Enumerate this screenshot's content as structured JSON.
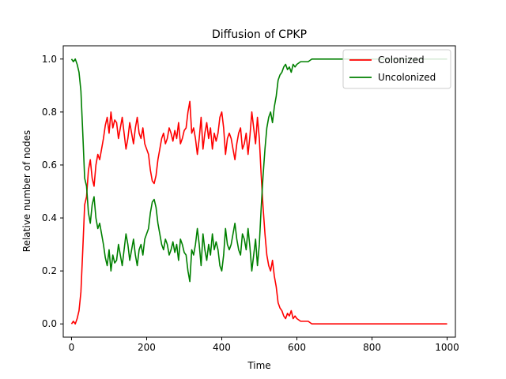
{
  "chart_data": {
    "type": "line",
    "title": "Diffusion of CPKP",
    "xlabel": "Time",
    "ylabel": "Relative number of nodes",
    "xlim": [
      -22,
      1022
    ],
    "ylim": [
      -0.05,
      1.05
    ],
    "xticks": [
      0,
      200,
      400,
      600,
      800,
      1000
    ],
    "yticks": [
      0.0,
      0.2,
      0.4,
      0.6,
      0.8,
      1.0
    ],
    "ytick_labels": [
      "0.0",
      "0.2",
      "0.4",
      "0.6",
      "0.8",
      "1.0"
    ],
    "legend_position": "top-right",
    "grid": false,
    "series": [
      {
        "name": "Colonized",
        "color": "#ff0000",
        "points": [
          [
            0,
            0.0
          ],
          [
            5,
            0.01
          ],
          [
            10,
            0.0
          ],
          [
            15,
            0.02
          ],
          [
            20,
            0.05
          ],
          [
            25,
            0.12
          ],
          [
            30,
            0.28
          ],
          [
            35,
            0.45
          ],
          [
            40,
            0.48
          ],
          [
            45,
            0.58
          ],
          [
            50,
            0.62
          ],
          [
            55,
            0.55
          ],
          [
            60,
            0.52
          ],
          [
            65,
            0.6
          ],
          [
            70,
            0.64
          ],
          [
            75,
            0.62
          ],
          [
            80,
            0.66
          ],
          [
            85,
            0.7
          ],
          [
            90,
            0.75
          ],
          [
            95,
            0.78
          ],
          [
            100,
            0.72
          ],
          [
            105,
            0.8
          ],
          [
            110,
            0.74
          ],
          [
            115,
            0.77
          ],
          [
            120,
            0.76
          ],
          [
            125,
            0.7
          ],
          [
            130,
            0.74
          ],
          [
            135,
            0.78
          ],
          [
            140,
            0.72
          ],
          [
            145,
            0.66
          ],
          [
            150,
            0.7
          ],
          [
            155,
            0.76
          ],
          [
            160,
            0.72
          ],
          [
            165,
            0.68
          ],
          [
            170,
            0.74
          ],
          [
            175,
            0.78
          ],
          [
            180,
            0.72
          ],
          [
            185,
            0.7
          ],
          [
            190,
            0.74
          ],
          [
            195,
            0.68
          ],
          [
            200,
            0.66
          ],
          [
            205,
            0.64
          ],
          [
            210,
            0.58
          ],
          [
            215,
            0.54
          ],
          [
            220,
            0.53
          ],
          [
            225,
            0.56
          ],
          [
            230,
            0.62
          ],
          [
            235,
            0.66
          ],
          [
            240,
            0.7
          ],
          [
            245,
            0.72
          ],
          [
            250,
            0.68
          ],
          [
            255,
            0.7
          ],
          [
            260,
            0.74
          ],
          [
            265,
            0.72
          ],
          [
            270,
            0.69
          ],
          [
            275,
            0.73
          ],
          [
            280,
            0.7
          ],
          [
            285,
            0.76
          ],
          [
            290,
            0.68
          ],
          [
            295,
            0.7
          ],
          [
            300,
            0.73
          ],
          [
            305,
            0.74
          ],
          [
            310,
            0.8
          ],
          [
            315,
            0.84
          ],
          [
            320,
            0.72
          ],
          [
            325,
            0.74
          ],
          [
            330,
            0.7
          ],
          [
            335,
            0.64
          ],
          [
            340,
            0.7
          ],
          [
            345,
            0.78
          ],
          [
            350,
            0.66
          ],
          [
            355,
            0.72
          ],
          [
            360,
            0.76
          ],
          [
            365,
            0.7
          ],
          [
            370,
            0.74
          ],
          [
            375,
            0.66
          ],
          [
            380,
            0.72
          ],
          [
            385,
            0.69
          ],
          [
            390,
            0.72
          ],
          [
            395,
            0.78
          ],
          [
            400,
            0.8
          ],
          [
            405,
            0.74
          ],
          [
            410,
            0.64
          ],
          [
            415,
            0.7
          ],
          [
            420,
            0.72
          ],
          [
            425,
            0.7
          ],
          [
            430,
            0.66
          ],
          [
            435,
            0.62
          ],
          [
            440,
            0.68
          ],
          [
            445,
            0.72
          ],
          [
            450,
            0.74
          ],
          [
            455,
            0.66
          ],
          [
            460,
            0.68
          ],
          [
            465,
            0.72
          ],
          [
            470,
            0.64
          ],
          [
            475,
            0.71
          ],
          [
            480,
            0.8
          ],
          [
            485,
            0.74
          ],
          [
            490,
            0.68
          ],
          [
            495,
            0.78
          ],
          [
            500,
            0.7
          ],
          [
            505,
            0.56
          ],
          [
            510,
            0.44
          ],
          [
            515,
            0.34
          ],
          [
            520,
            0.26
          ],
          [
            525,
            0.22
          ],
          [
            530,
            0.2
          ],
          [
            535,
            0.24
          ],
          [
            540,
            0.18
          ],
          [
            545,
            0.14
          ],
          [
            550,
            0.08
          ],
          [
            555,
            0.06
          ],
          [
            560,
            0.05
          ],
          [
            565,
            0.03
          ],
          [
            570,
            0.02
          ],
          [
            575,
            0.04
          ],
          [
            580,
            0.03
          ],
          [
            585,
            0.05
          ],
          [
            590,
            0.02
          ],
          [
            595,
            0.03
          ],
          [
            600,
            0.02
          ],
          [
            610,
            0.01
          ],
          [
            620,
            0.01
          ],
          [
            630,
            0.01
          ],
          [
            640,
            0.0
          ],
          [
            660,
            0.0
          ],
          [
            700,
            0.0
          ],
          [
            800,
            0.0
          ],
          [
            900,
            0.0
          ],
          [
            1000,
            0.0
          ]
        ]
      },
      {
        "name": "Uncolonized",
        "color": "#008000",
        "points": [
          [
            0,
            1.0
          ],
          [
            5,
            0.99
          ],
          [
            10,
            1.0
          ],
          [
            15,
            0.98
          ],
          [
            20,
            0.95
          ],
          [
            25,
            0.88
          ],
          [
            30,
            0.72
          ],
          [
            35,
            0.55
          ],
          [
            40,
            0.52
          ],
          [
            45,
            0.42
          ],
          [
            50,
            0.38
          ],
          [
            55,
            0.45
          ],
          [
            60,
            0.48
          ],
          [
            65,
            0.4
          ],
          [
            70,
            0.36
          ],
          [
            75,
            0.38
          ],
          [
            80,
            0.34
          ],
          [
            85,
            0.3
          ],
          [
            90,
            0.25
          ],
          [
            95,
            0.22
          ],
          [
            100,
            0.28
          ],
          [
            105,
            0.2
          ],
          [
            110,
            0.26
          ],
          [
            115,
            0.23
          ],
          [
            120,
            0.24
          ],
          [
            125,
            0.3
          ],
          [
            130,
            0.26
          ],
          [
            135,
            0.22
          ],
          [
            140,
            0.28
          ],
          [
            145,
            0.34
          ],
          [
            150,
            0.3
          ],
          [
            155,
            0.24
          ],
          [
            160,
            0.28
          ],
          [
            165,
            0.32
          ],
          [
            170,
            0.26
          ],
          [
            175,
            0.22
          ],
          [
            180,
            0.28
          ],
          [
            185,
            0.3
          ],
          [
            190,
            0.26
          ],
          [
            195,
            0.32
          ],
          [
            200,
            0.34
          ],
          [
            205,
            0.36
          ],
          [
            210,
            0.42
          ],
          [
            215,
            0.46
          ],
          [
            220,
            0.47
          ],
          [
            225,
            0.44
          ],
          [
            230,
            0.38
          ],
          [
            235,
            0.34
          ],
          [
            240,
            0.3
          ],
          [
            245,
            0.28
          ],
          [
            250,
            0.32
          ],
          [
            255,
            0.3
          ],
          [
            260,
            0.26
          ],
          [
            265,
            0.28
          ],
          [
            270,
            0.31
          ],
          [
            275,
            0.27
          ],
          [
            280,
            0.3
          ],
          [
            285,
            0.24
          ],
          [
            290,
            0.32
          ],
          [
            295,
            0.3
          ],
          [
            300,
            0.27
          ],
          [
            305,
            0.26
          ],
          [
            310,
            0.2
          ],
          [
            315,
            0.16
          ],
          [
            320,
            0.28
          ],
          [
            325,
            0.26
          ],
          [
            330,
            0.3
          ],
          [
            335,
            0.36
          ],
          [
            340,
            0.3
          ],
          [
            345,
            0.22
          ],
          [
            350,
            0.34
          ],
          [
            355,
            0.28
          ],
          [
            360,
            0.24
          ],
          [
            365,
            0.3
          ],
          [
            370,
            0.26
          ],
          [
            375,
            0.34
          ],
          [
            380,
            0.28
          ],
          [
            385,
            0.31
          ],
          [
            390,
            0.28
          ],
          [
            395,
            0.22
          ],
          [
            400,
            0.2
          ],
          [
            405,
            0.26
          ],
          [
            410,
            0.36
          ],
          [
            415,
            0.3
          ],
          [
            420,
            0.28
          ],
          [
            425,
            0.3
          ],
          [
            430,
            0.34
          ],
          [
            435,
            0.38
          ],
          [
            440,
            0.32
          ],
          [
            445,
            0.28
          ],
          [
            450,
            0.26
          ],
          [
            455,
            0.34
          ],
          [
            460,
            0.32
          ],
          [
            465,
            0.28
          ],
          [
            470,
            0.36
          ],
          [
            475,
            0.29
          ],
          [
            480,
            0.2
          ],
          [
            485,
            0.26
          ],
          [
            490,
            0.32
          ],
          [
            495,
            0.22
          ],
          [
            500,
            0.3
          ],
          [
            505,
            0.44
          ],
          [
            510,
            0.56
          ],
          [
            515,
            0.66
          ],
          [
            520,
            0.74
          ],
          [
            525,
            0.78
          ],
          [
            530,
            0.8
          ],
          [
            535,
            0.76
          ],
          [
            540,
            0.82
          ],
          [
            545,
            0.86
          ],
          [
            550,
            0.92
          ],
          [
            555,
            0.94
          ],
          [
            560,
            0.95
          ],
          [
            565,
            0.97
          ],
          [
            570,
            0.98
          ],
          [
            575,
            0.96
          ],
          [
            580,
            0.97
          ],
          [
            585,
            0.95
          ],
          [
            590,
            0.98
          ],
          [
            595,
            0.97
          ],
          [
            600,
            0.98
          ],
          [
            610,
            0.99
          ],
          [
            620,
            0.99
          ],
          [
            630,
            0.99
          ],
          [
            640,
            1.0
          ],
          [
            660,
            1.0
          ],
          [
            700,
            1.0
          ],
          [
            800,
            1.0
          ],
          [
            900,
            1.0
          ],
          [
            1000,
            1.0
          ]
        ]
      }
    ]
  }
}
